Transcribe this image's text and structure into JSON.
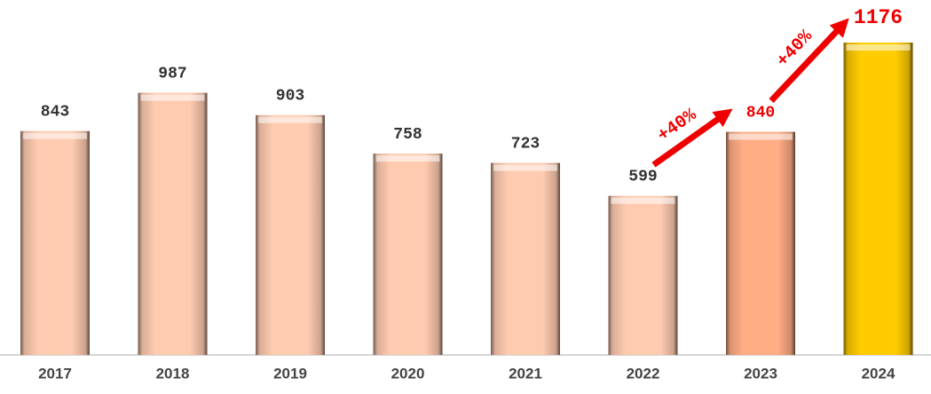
{
  "chart_data": {
    "type": "bar",
    "categories": [
      "2017",
      "2018",
      "2019",
      "2020",
      "2021",
      "2022",
      "2023",
      "2024"
    ],
    "values": [
      843,
      987,
      903,
      758,
      723,
      599,
      840,
      1176
    ],
    "colors": [
      "#ffcbb0",
      "#ffcbb0",
      "#ffcbb0",
      "#ffcbb0",
      "#ffcbb0",
      "#ffcbb0",
      "#ffad85",
      "#ffcc00"
    ],
    "value_label_colors": [
      "#333333",
      "#333333",
      "#333333",
      "#333333",
      "#333333",
      "#333333",
      "#ee0000",
      "#ee0000"
    ],
    "annotations": [
      "+40%",
      "+40%"
    ],
    "annotation_color": "#ee0000"
  }
}
